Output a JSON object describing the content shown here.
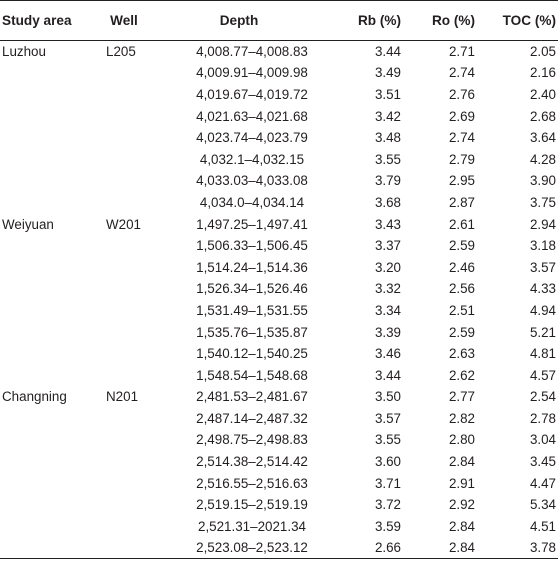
{
  "table": {
    "headers": [
      "Study area",
      "Well",
      "Depth",
      "Rb (%)",
      "Ro (%)",
      "TOC (%)"
    ],
    "groups": [
      {
        "study_area": "Luzhou",
        "well": "L205",
        "rows": [
          {
            "depth": "4,008.77–4,008.83",
            "rb": "3.44",
            "ro": "2.71",
            "toc": "2.05"
          },
          {
            "depth": "4,009.91–4,009.98",
            "rb": "3.49",
            "ro": "2.74",
            "toc": "2.16"
          },
          {
            "depth": "4,019.67–4,019.72",
            "rb": "3.51",
            "ro": "2.76",
            "toc": "2.40"
          },
          {
            "depth": "4,021.63–4,021.68",
            "rb": "3.42",
            "ro": "2.69",
            "toc": "2.68"
          },
          {
            "depth": "4,023.74–4,023.79",
            "rb": "3.48",
            "ro": "2.74",
            "toc": "3.64"
          },
          {
            "depth": "4,032.1–4,032.15",
            "rb": "3.55",
            "ro": "2.79",
            "toc": "4.28"
          },
          {
            "depth": "4,033.03–4,033.08",
            "rb": "3.79",
            "ro": "2.95",
            "toc": "3.90"
          },
          {
            "depth": "4,034.0–4,034.14",
            "rb": "3.68",
            "ro": "2.87",
            "toc": "3.75"
          }
        ]
      },
      {
        "study_area": "Weiyuan",
        "well": "W201",
        "rows": [
          {
            "depth": "1,497.25–1,497.41",
            "rb": "3.43",
            "ro": "2.61",
            "toc": "2.94"
          },
          {
            "depth": "1,506.33–1,506.45",
            "rb": "3.37",
            "ro": "2.59",
            "toc": "3.18"
          },
          {
            "depth": "1,514.24–1,514.36",
            "rb": "3.20",
            "ro": "2.46",
            "toc": "3.57"
          },
          {
            "depth": "1,526.34–1,526.46",
            "rb": "3.32",
            "ro": "2.56",
            "toc": "4.33"
          },
          {
            "depth": "1,531.49–1,531.55",
            "rb": "3.34",
            "ro": "2.51",
            "toc": "4.94"
          },
          {
            "depth": "1,535.76–1,535.87",
            "rb": "3.39",
            "ro": "2.59",
            "toc": "5.21"
          },
          {
            "depth": "1,540.12–1,540.25",
            "rb": "3.46",
            "ro": "2.63",
            "toc": "4.81"
          },
          {
            "depth": "1,548.54–1,548.68",
            "rb": "3.44",
            "ro": "2.62",
            "toc": "4.57"
          }
        ]
      },
      {
        "study_area": "Changning",
        "well": "N201",
        "rows": [
          {
            "depth": "2,481.53–2,481.67",
            "rb": "3.50",
            "ro": "2.77",
            "toc": "2.54"
          },
          {
            "depth": "2,487.14–2,487.32",
            "rb": "3.57",
            "ro": "2.82",
            "toc": "2.78"
          },
          {
            "depth": "2,498.75–2,498.83",
            "rb": "3.55",
            "ro": "2.80",
            "toc": "3.04"
          },
          {
            "depth": "2,514.38–2,514.42",
            "rb": "3.60",
            "ro": "2.84",
            "toc": "3.45"
          },
          {
            "depth": "2,516.55–2,516.63",
            "rb": "3.71",
            "ro": "2.91",
            "toc": "4.47"
          },
          {
            "depth": "2,519.15–2,519.19",
            "rb": "3.72",
            "ro": "2.92",
            "toc": "5.34"
          },
          {
            "depth": "2,521.31–2021.34",
            "rb": "3.59",
            "ro": "2.84",
            "toc": "4.51"
          },
          {
            "depth": "2,523.08–2,523.12",
            "rb": "2.66",
            "ro": "2.84",
            "toc": "3.78"
          }
        ]
      }
    ]
  }
}
